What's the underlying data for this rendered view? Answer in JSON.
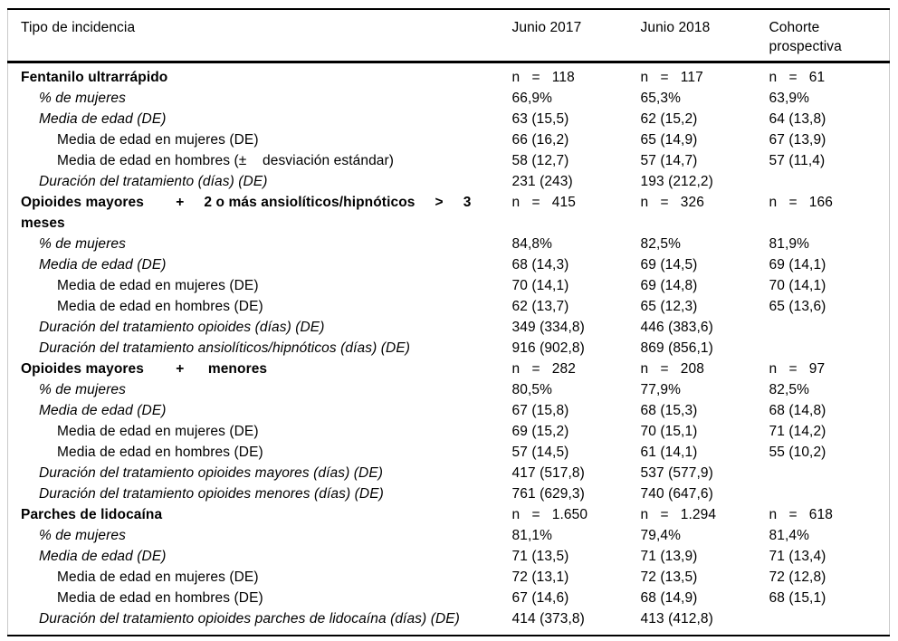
{
  "table": {
    "header": {
      "label_column": "Tipo de incidencia",
      "value_columns": [
        "Junio 2017",
        "Junio 2018",
        "Cohorte\nprospectiva"
      ]
    },
    "rows": [
      {
        "label": "Fentanilo ultrarrápido",
        "style": "section",
        "indent": 0,
        "values": [
          "n   =   118",
          "n   =   117",
          "n   =   61"
        ]
      },
      {
        "label": "% de mujeres",
        "style": "italic",
        "indent": 1,
        "values": [
          "66,9%",
          "65,3%",
          "63,9%"
        ]
      },
      {
        "label": "Media de edad (DE)",
        "style": "italic",
        "indent": 1,
        "values": [
          "63 (15,5)",
          "62 (15,2)",
          "64 (13,8)"
        ]
      },
      {
        "label": "Media de edad en mujeres (DE)",
        "style": "plain",
        "indent": 2,
        "values": [
          "66 (16,2)",
          "65 (14,9)",
          "67 (13,9)"
        ]
      },
      {
        "label": "Media de edad en hombres (±    desviación estándar)",
        "style": "plain",
        "indent": 2,
        "values": [
          "58 (12,7)",
          "57 (14,7)",
          "57 (11,4)"
        ]
      },
      {
        "label": "Duración del tratamiento (días) (DE)",
        "style": "italic",
        "indent": 1,
        "values": [
          "231 (243)",
          "193 (212,2)",
          ""
        ]
      },
      {
        "label": "Opioides mayores        +     2 o más ansiolíticos/hipnóticos     >     3\nmeses",
        "style": "section",
        "indent": 0,
        "values": [
          "n   =   415",
          "n   =   326",
          "n   =   166"
        ]
      },
      {
        "label": "% de mujeres",
        "style": "italic",
        "indent": 1,
        "values": [
          "84,8%",
          "82,5%",
          "81,9%"
        ]
      },
      {
        "label": "Media de edad (DE)",
        "style": "italic",
        "indent": 1,
        "values": [
          "68 (14,3)",
          "69 (14,5)",
          "69 (14,1)"
        ]
      },
      {
        "label": "Media de edad en mujeres (DE)",
        "style": "plain",
        "indent": 2,
        "values": [
          "70 (14,1)",
          "69 (14,8)",
          "70 (14,1)"
        ]
      },
      {
        "label": "Media de edad en hombres (DE)",
        "style": "plain",
        "indent": 2,
        "values": [
          "62 (13,7)",
          "65 (12,3)",
          "65 (13,6)"
        ]
      },
      {
        "label": "Duración del tratamiento opioides (días) (DE)",
        "style": "italic",
        "indent": 1,
        "values": [
          "349 (334,8)",
          "446 (383,6)",
          ""
        ]
      },
      {
        "label": "Duración del tratamiento ansiolíticos/hipnóticos (días) (DE)",
        "style": "italic",
        "indent": 1,
        "values": [
          "916 (902,8)",
          "869 (856,1)",
          ""
        ]
      },
      {
        "label": "Opioides mayores        +      menores",
        "style": "section",
        "indent": 0,
        "values": [
          "n   =   282",
          "n   =   208",
          "n   =   97"
        ]
      },
      {
        "label": "% de mujeres",
        "style": "italic",
        "indent": 1,
        "values": [
          "80,5%",
          "77,9%",
          "82,5%"
        ]
      },
      {
        "label": "Media de edad (DE)",
        "style": "italic",
        "indent": 1,
        "values": [
          "67 (15,8)",
          "68 (15,3)",
          "68 (14,8)"
        ]
      },
      {
        "label": "Media de edad en mujeres (DE)",
        "style": "plain",
        "indent": 2,
        "values": [
          "69 (15,2)",
          "70 (15,1)",
          "71 (14,2)"
        ]
      },
      {
        "label": "Media de edad en hombres (DE)",
        "style": "plain",
        "indent": 2,
        "values": [
          "57 (14,5)",
          "61 (14,1)",
          "55 (10,2)"
        ]
      },
      {
        "label": "Duración del tratamiento opioides mayores (días) (DE)",
        "style": "italic",
        "indent": 1,
        "values": [
          "417 (517,8)",
          "537 (577,9)",
          ""
        ]
      },
      {
        "label": "Duración del tratamiento opioides menores (días) (DE)",
        "style": "italic",
        "indent": 1,
        "values": [
          "761 (629,3)",
          "740 (647,6)",
          ""
        ]
      },
      {
        "label": "Parches de lidocaína",
        "style": "section",
        "indent": 0,
        "values": [
          "n   =   1.650",
          "n   =   1.294",
          "n   =   618"
        ]
      },
      {
        "label": "% de mujeres",
        "style": "italic",
        "indent": 1,
        "values": [
          "81,1%",
          "79,4%",
          "81,4%"
        ]
      },
      {
        "label": "Media de edad (DE)",
        "style": "italic",
        "indent": 1,
        "values": [
          "71 (13,5)",
          "71 (13,9)",
          "71 (13,4)"
        ]
      },
      {
        "label": "Media de edad en mujeres (DE)",
        "style": "plain",
        "indent": 2,
        "values": [
          "72 (13,1)",
          "72 (13,5)",
          "72 (12,8)"
        ]
      },
      {
        "label": "Media de edad en hombres (DE)",
        "style": "plain",
        "indent": 2,
        "values": [
          "67 (14,6)",
          "68 (14,9)",
          "68 (15,1)"
        ]
      },
      {
        "label": "Duración del tratamiento opioides parches de lidocaína (días) (DE)",
        "style": "italic",
        "indent": 1,
        "values": [
          "414 (373,8)",
          "413 (412,8)",
          ""
        ]
      }
    ]
  }
}
